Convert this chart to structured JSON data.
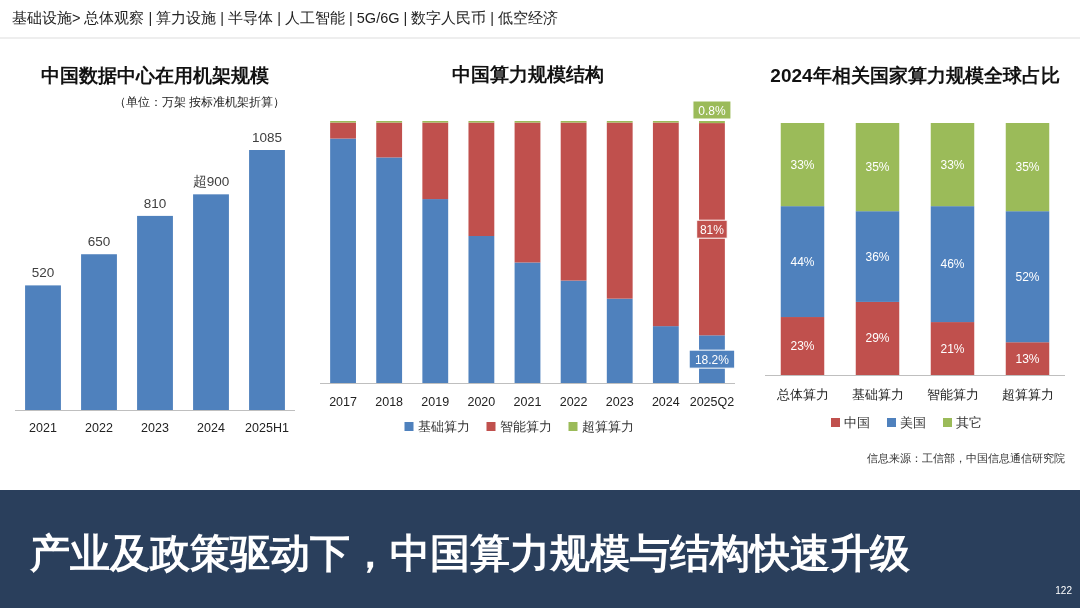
{
  "chart_data": [
    {
      "type": "bar",
      "title": "中国数据中心在用机架规模",
      "subtitle": "（单位：万架  按标准机架折算）",
      "categories": [
        "2021",
        "2022",
        "2023",
        "2024",
        "2025H1"
      ],
      "values": [
        520,
        650,
        810,
        900,
        1085
      ],
      "value_labels": [
        "520",
        "650",
        "810",
        "超900",
        "1085"
      ],
      "color": "#4f81bd",
      "legend": false
    },
    {
      "type": "bar",
      "title": "中国算力规模结构",
      "stacked": true,
      "categories": [
        "2017",
        "2018",
        "2019",
        "2020",
        "2021",
        "2022",
        "2023",
        "2024",
        "2025Q2"
      ],
      "legend": "bottom",
      "series": [
        {
          "name": "基础算力",
          "color": "#4f81bd",
          "values": [
            93.3,
            86.1,
            70.2,
            56.1,
            46.0,
            39.1,
            32.2,
            21.7,
            18.2
          ],
          "value_labels": [
            null,
            null,
            null,
            null,
            null,
            null,
            null,
            null,
            "18.2%"
          ]
        },
        {
          "name": "智能算力",
          "color": "#c0504d",
          "values": [
            6.1,
            13.3,
            29.2,
            43.3,
            53.4,
            60.3,
            67.2,
            77.7,
            81
          ],
          "value_labels": [
            null,
            null,
            null,
            null,
            null,
            null,
            null,
            null,
            "81%"
          ]
        },
        {
          "name": "超算算力",
          "color": "#9bbb59",
          "values": [
            0.6,
            0.6,
            0.6,
            0.6,
            0.6,
            0.6,
            0.6,
            0.6,
            0.8
          ],
          "value_labels": [
            null,
            null,
            null,
            null,
            null,
            null,
            null,
            null,
            "0.8%"
          ]
        }
      ]
    },
    {
      "type": "bar",
      "title": "2024年相关国家算力规模全球占比",
      "stacked": true,
      "categories": [
        "总体算力",
        "基础算力",
        "智能算力",
        "超算算力"
      ],
      "legend": "bottom",
      "series": [
        {
          "name": "中国",
          "color": "#c0504d",
          "values": [
            23,
            29,
            21,
            13
          ],
          "value_labels": [
            "23%",
            "29%",
            "21%",
            "13%"
          ]
        },
        {
          "name": "美国",
          "color": "#4f81bd",
          "values": [
            44,
            36,
            46,
            52
          ],
          "value_labels": [
            "44%",
            "36%",
            "46%",
            "52%"
          ]
        },
        {
          "name": "其它",
          "color": "#9bbb59",
          "values": [
            33,
            35,
            33,
            35
          ],
          "value_labels": [
            "33%",
            "35%",
            "33%",
            "35%"
          ]
        }
      ]
    },
    {
      "type": "other",
      "title": "产业及政策驱动下，中国算力规模与结构快速升级",
      "annotations": [
        "基础设施> 总体观察 | 算力设施 | 半导体 | 人工智能 | 5G/6G | 数字人民币 | 低空经济",
        "信息来源：工信部，中国信息通信研究院",
        "122"
      ]
    }
  ]
}
